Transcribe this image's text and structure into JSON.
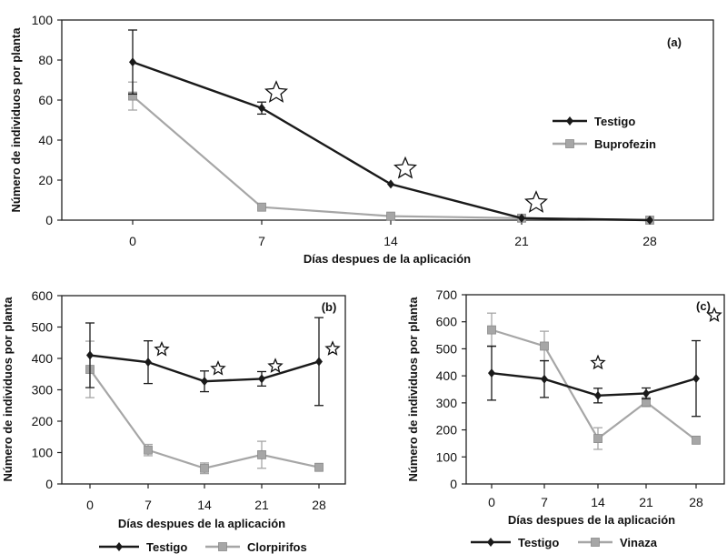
{
  "chart_data": [
    {
      "type": "line",
      "panel_label": "(a)",
      "xlabel": "Días despues de la aplicación",
      "ylabel": "Número de individuos por planta",
      "categories": [
        "0",
        "7",
        "14",
        "21",
        "28"
      ],
      "ylim": [
        0,
        100
      ],
      "yticks": [
        "0",
        "20",
        "40",
        "60",
        "80",
        "100"
      ],
      "grid": false,
      "legend_position": "right",
      "series": [
        {
          "name": "Testigo",
          "values": [
            79,
            56,
            18,
            1,
            0
          ],
          "errors": [
            16,
            3,
            0,
            0,
            0
          ],
          "color": "#1a1a1a",
          "marker": "diamond"
        },
        {
          "name": "Buprofezin",
          "values": [
            62,
            6.5,
            2,
            1,
            0
          ],
          "errors": [
            7,
            0,
            0,
            0,
            0
          ],
          "color": "#a6a6a6",
          "marker": "square"
        }
      ],
      "stars_at": [
        1,
        2,
        3
      ]
    },
    {
      "type": "line",
      "panel_label": "(b)",
      "xlabel": "Días despues de la aplicación",
      "ylabel": "Número de individuos por planta",
      "categories": [
        "0",
        "7",
        "14",
        "21",
        "28"
      ],
      "ylim": [
        0,
        600
      ],
      "yticks": [
        "0",
        "100",
        "200",
        "300",
        "400",
        "500",
        "600"
      ],
      "grid": false,
      "legend_position": "bottom",
      "series": [
        {
          "name": "Testigo",
          "values": [
            410,
            388,
            327,
            335,
            390
          ],
          "errors": [
            103,
            68,
            33,
            23,
            140
          ],
          "color": "#1a1a1a",
          "marker": "diamond"
        },
        {
          "name": "Clorpirifos",
          "values": [
            365,
            108,
            50,
            93,
            53
          ],
          "errors": [
            90,
            18,
            17,
            43,
            0
          ],
          "color": "#a6a6a6",
          "marker": "square"
        }
      ],
      "stars_at": [
        1,
        2,
        3,
        4
      ]
    },
    {
      "type": "line",
      "panel_label": "(c)",
      "xlabel": "Días despues de la aplicación",
      "ylabel": "Número de individuos por planta",
      "categories": [
        "0",
        "7",
        "14",
        "21",
        "28"
      ],
      "ylim": [
        0,
        700
      ],
      "yticks": [
        "0",
        "100",
        "200",
        "300",
        "400",
        "500",
        "600",
        "700"
      ],
      "grid": false,
      "legend_position": "bottom",
      "series": [
        {
          "name": "Testigo",
          "values": [
            410,
            388,
            327,
            335,
            390
          ],
          "errors": [
            100,
            68,
            27,
            20,
            140
          ],
          "color": "#1a1a1a",
          "marker": "diamond"
        },
        {
          "name": "Vinaza",
          "values": [
            570,
            510,
            168,
            303,
            162
          ],
          "errors": [
            62,
            55,
            40,
            17,
            0
          ],
          "color": "#a6a6a6",
          "marker": "square"
        }
      ],
      "stars_at": [
        2,
        4
      ]
    }
  ]
}
